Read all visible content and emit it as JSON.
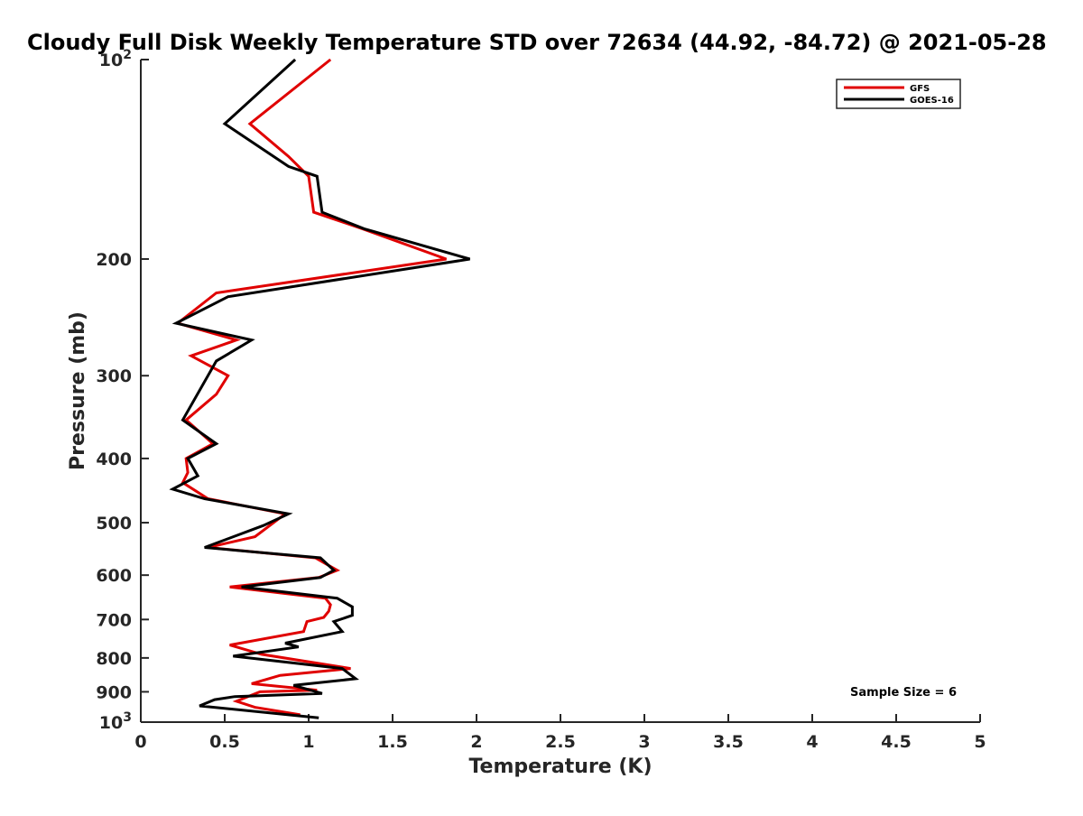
{
  "chart_data": {
    "type": "line",
    "title": "Cloudy Full Disk Weekly Temperature STD over 72634 (44.92, -84.72) @ 2021-05-28",
    "xlabel": "Temperature (K)",
    "ylabel": "Pressure (mb)",
    "xlim": [
      0,
      5
    ],
    "ylim": [
      100,
      1000
    ],
    "y_scale": "log",
    "y_reversed": true,
    "x_ticks": [
      0,
      0.5,
      1,
      1.5,
      2,
      2.5,
      3,
      3.5,
      4,
      4.5,
      5
    ],
    "x_tick_labels": [
      "0",
      "0.5",
      "1",
      "1.5",
      "2",
      "2.5",
      "3",
      "3.5",
      "4",
      "4.5",
      "5"
    ],
    "y_ticks": [
      100,
      200,
      300,
      400,
      500,
      600,
      700,
      800,
      900,
      1000
    ],
    "y_tick_labels": [
      {
        "base": "10",
        "exp": "2"
      },
      {
        "base": "200"
      },
      {
        "base": "300"
      },
      {
        "base": "400"
      },
      {
        "base": "500"
      },
      {
        "base": "600"
      },
      {
        "base": "700"
      },
      {
        "base": "800"
      },
      {
        "base": "900"
      },
      {
        "base": "10",
        "exp": "3"
      }
    ],
    "grid": false,
    "legend_position": "top-right",
    "series": [
      {
        "name": "GFS",
        "color": "#e00000",
        "points": [
          [
            1.13,
            100
          ],
          [
            0.65,
            125
          ],
          [
            0.88,
            140
          ],
          [
            1.0,
            150
          ],
          [
            1.03,
            170
          ],
          [
            1.32,
            180
          ],
          [
            1.82,
            200
          ],
          [
            0.45,
            225
          ],
          [
            0.22,
            250
          ],
          [
            0.57,
            265
          ],
          [
            0.3,
            280
          ],
          [
            0.52,
            300
          ],
          [
            0.45,
            320
          ],
          [
            0.27,
            350
          ],
          [
            0.43,
            380
          ],
          [
            0.27,
            400
          ],
          [
            0.28,
            420
          ],
          [
            0.25,
            435
          ],
          [
            0.4,
            460
          ],
          [
            0.86,
            485
          ],
          [
            0.68,
            525
          ],
          [
            0.4,
            545
          ],
          [
            1.04,
            565
          ],
          [
            1.17,
            590
          ],
          [
            1.06,
            605
          ],
          [
            0.53,
            625
          ],
          [
            1.1,
            650
          ],
          [
            1.13,
            665
          ],
          [
            1.12,
            680
          ],
          [
            1.09,
            695
          ],
          [
            0.99,
            705
          ],
          [
            0.97,
            730
          ],
          [
            0.53,
            765
          ],
          [
            0.72,
            790
          ],
          [
            1.25,
            830
          ],
          [
            0.83,
            850
          ],
          [
            0.66,
            875
          ],
          [
            1.05,
            895
          ],
          [
            0.71,
            900
          ],
          [
            0.57,
            930
          ],
          [
            0.68,
            950
          ],
          [
            0.95,
            975
          ]
        ]
      },
      {
        "name": "GOES-16",
        "color": "#000000",
        "points": [
          [
            0.92,
            100
          ],
          [
            0.5,
            125
          ],
          [
            0.88,
            145
          ],
          [
            1.05,
            150
          ],
          [
            1.08,
            170
          ],
          [
            1.33,
            180
          ],
          [
            1.96,
            200
          ],
          [
            0.52,
            228
          ],
          [
            0.21,
            250
          ],
          [
            0.66,
            265
          ],
          [
            0.45,
            285
          ],
          [
            0.4,
            300
          ],
          [
            0.25,
            350
          ],
          [
            0.45,
            380
          ],
          [
            0.28,
            400
          ],
          [
            0.34,
            425
          ],
          [
            0.19,
            445
          ],
          [
            0.38,
            460
          ],
          [
            0.88,
            485
          ],
          [
            0.73,
            505
          ],
          [
            0.38,
            545
          ],
          [
            1.07,
            565
          ],
          [
            1.15,
            590
          ],
          [
            1.07,
            605
          ],
          [
            0.6,
            625
          ],
          [
            1.17,
            650
          ],
          [
            1.26,
            670
          ],
          [
            1.26,
            690
          ],
          [
            1.15,
            705
          ],
          [
            1.2,
            730
          ],
          [
            0.86,
            760
          ],
          [
            0.94,
            770
          ],
          [
            0.55,
            795
          ],
          [
            1.2,
            830
          ],
          [
            1.28,
            860
          ],
          [
            0.91,
            880
          ],
          [
            1.08,
            905
          ],
          [
            0.56,
            915
          ],
          [
            0.44,
            925
          ],
          [
            0.35,
            945
          ],
          [
            1.06,
            985
          ]
        ]
      }
    ],
    "annotations": [
      {
        "text": "Sample Size = 6"
      }
    ]
  }
}
